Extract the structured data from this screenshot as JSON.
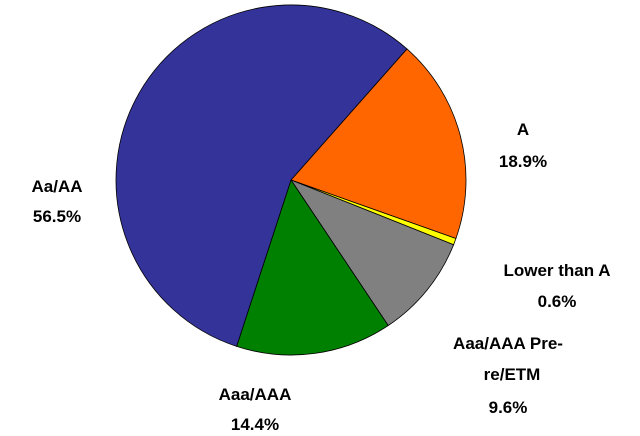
{
  "chart_data": {
    "type": "pie",
    "start_angle_deg": 41.5,
    "direction": "clockwise",
    "slices": [
      {
        "key": "a",
        "label": "A",
        "label_lines": [
          "A"
        ],
        "value_text": "18.9%",
        "value": 18.9,
        "color": "#ff6600"
      },
      {
        "key": "lower_than_a",
        "label": "Lower than A",
        "label_lines": [
          "Lower than A"
        ],
        "value_text": "0.6%",
        "value": 0.6,
        "color": "#ffff00"
      },
      {
        "key": "aaa_pre_etm",
        "label": "Aaa/AAA Pre-re/ETM",
        "label_lines": [
          "Aaa/AAA Pre-",
          "re/ETM"
        ],
        "value_text": "9.6%",
        "value": 9.6,
        "color": "#808080"
      },
      {
        "key": "aaa_aaa",
        "label": "Aaa/AAA",
        "label_lines": [
          "Aaa/AAA"
        ],
        "value_text": "14.4%",
        "value": 14.4,
        "color": "#008000"
      },
      {
        "key": "aa_aa",
        "label": "Aa/AA",
        "label_lines": [
          "Aa/AA"
        ],
        "value_text": "56.5%",
        "value": 56.5,
        "color": "#333399"
      }
    ]
  }
}
